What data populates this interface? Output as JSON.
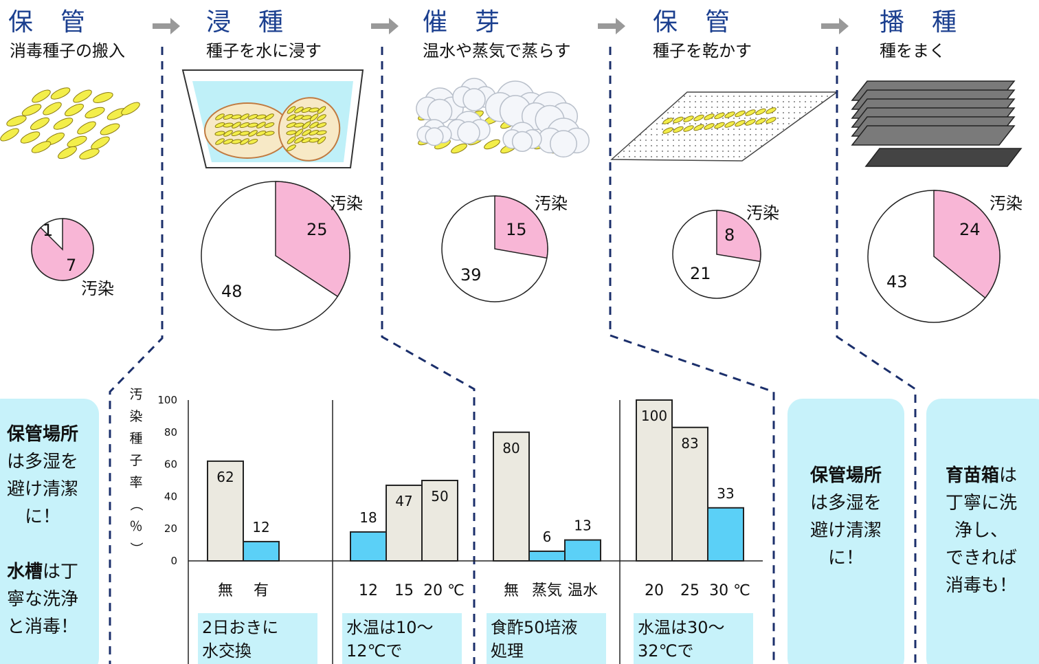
{
  "stages": [
    {
      "title": "保　管",
      "subtitle": "消毒種子の搬入"
    },
    {
      "title": "浸　種",
      "subtitle": "種子を水に浸す"
    },
    {
      "title": "催　芽",
      "subtitle": "温水や蒸気で蒸らす"
    },
    {
      "title": "保　管",
      "subtitle": "種子を乾かす"
    },
    {
      "title": "播　種",
      "subtitle": "種をまく"
    }
  ],
  "pies": [
    {
      "contaminated": 7,
      "clean": 1,
      "label": "汚染"
    },
    {
      "contaminated": 25,
      "clean": 48,
      "label": "汚染"
    },
    {
      "contaminated": 15,
      "clean": 39,
      "label": "汚染"
    },
    {
      "contaminated": 8,
      "clean": 21,
      "label": "汚染"
    },
    {
      "contaminated": 24,
      "clean": 43,
      "label": "汚染"
    }
  ],
  "colors": {
    "contaminated": "#f8b6d6",
    "clean": "#ffffff",
    "bar_beige": "#ebe9e0",
    "bar_blue": "#5bd0f7",
    "tip_bg": "#c7f2fa",
    "dash": "#1b2f6b",
    "title": "#1b3f8f"
  },
  "chart_data": {
    "type": "bar",
    "ylabel": "汚染種子率（％）",
    "ylim": [
      0,
      100
    ],
    "yticks": [
      "0",
      "20",
      "40",
      "60",
      "80",
      "100"
    ],
    "groups": [
      {
        "categories": [
          "無",
          "有"
        ],
        "values": [
          62,
          12
        ],
        "highlight": [
          false,
          true
        ],
        "labels": [
          "62",
          "12"
        ],
        "note": "2日おきに\n水交換"
      },
      {
        "categories": [
          "12",
          "15",
          "20 ℃"
        ],
        "values": [
          18,
          47,
          50
        ],
        "highlight": [
          true,
          false,
          false
        ],
        "labels": [
          "18",
          "47",
          "50"
        ],
        "note": "水温は10～\n12℃で"
      },
      {
        "categories": [
          "無",
          "蒸気",
          "温水"
        ],
        "values": [
          80,
          6,
          13
        ],
        "highlight": [
          false,
          true,
          true
        ],
        "labels": [
          "80",
          "6",
          "13"
        ],
        "note": "食酢50培液\n処理"
      },
      {
        "categories": [
          "20",
          "25",
          "30 ℃"
        ],
        "values": [
          100,
          83,
          33
        ],
        "highlight": [
          false,
          false,
          true
        ],
        "labels": [
          "100",
          "83",
          "33"
        ],
        "note": "水温は30～\n32℃で"
      }
    ]
  },
  "tips": {
    "left": {
      "bold1": "保管場所",
      "lines1": [
        "は多湿を",
        "避け清潔",
        "に！"
      ],
      "bold2": "水槽",
      "after2": "は丁",
      "lines2": [
        "寧な洗浄",
        "と消毒！"
      ]
    },
    "middle": {
      "bold": "保管場所",
      "lines": [
        "は多湿を",
        "避け清潔",
        "に！"
      ]
    },
    "right": {
      "bold": "育苗箱",
      "after": "は",
      "lines": [
        "丁寧に洗",
        "浄し、",
        "できれば",
        "消毒も！"
      ]
    }
  }
}
